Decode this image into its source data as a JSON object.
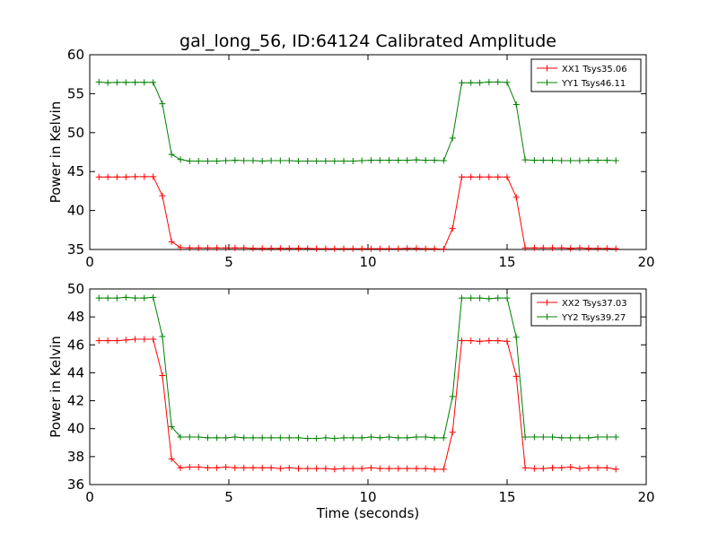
{
  "figure": {
    "title": "gal_long_56, ID:64124 Calibrated Amplitude"
  },
  "chart_data": [
    {
      "type": "line",
      "title": "gal_long_56, ID:64124 Calibrated Amplitude",
      "xlabel": "",
      "ylabel": "Power in Kelvin",
      "xlim": [
        0,
        20
      ],
      "ylim": [
        35,
        60
      ],
      "x_ticks": [
        0,
        5,
        10,
        15,
        20
      ],
      "y_ticks": [
        35,
        40,
        45,
        50,
        55,
        60
      ],
      "grid": false,
      "legend_placement": "top-right",
      "x": [
        0.33,
        0.65,
        0.98,
        1.3,
        1.63,
        1.96,
        2.28,
        2.61,
        2.94,
        3.26,
        3.59,
        3.91,
        4.24,
        4.57,
        4.89,
        5.22,
        5.54,
        5.87,
        6.2,
        6.52,
        6.85,
        7.17,
        7.5,
        7.83,
        8.15,
        8.48,
        8.8,
        9.13,
        9.46,
        9.78,
        10.11,
        10.43,
        10.76,
        11.09,
        11.41,
        11.74,
        12.07,
        12.39,
        12.72,
        13.04,
        13.37,
        13.7,
        14.02,
        14.35,
        14.67,
        15.0,
        15.33,
        15.65,
        15.98,
        16.3,
        16.63,
        16.96,
        17.28,
        17.61,
        17.93,
        18.26,
        18.59,
        18.91
      ],
      "series": [
        {
          "name": "XX1 Tsys35.06",
          "color": "#ff0000",
          "values": [
            44.3,
            44.3,
            44.3,
            44.3,
            44.35,
            44.35,
            44.35,
            41.9,
            36.0,
            35.25,
            35.2,
            35.2,
            35.2,
            35.2,
            35.2,
            35.2,
            35.2,
            35.15,
            35.15,
            35.15,
            35.15,
            35.15,
            35.15,
            35.15,
            35.1,
            35.1,
            35.1,
            35.1,
            35.1,
            35.1,
            35.1,
            35.1,
            35.1,
            35.1,
            35.15,
            35.15,
            35.1,
            35.1,
            35.05,
            37.7,
            44.3,
            44.3,
            44.3,
            44.3,
            44.3,
            44.3,
            41.7,
            35.2,
            35.2,
            35.2,
            35.2,
            35.2,
            35.15,
            35.2,
            35.15,
            35.15,
            35.15,
            35.1
          ]
        },
        {
          "name": "YY1 Tsys46.11",
          "color": "#008000",
          "values": [
            56.5,
            56.4,
            56.45,
            56.45,
            56.45,
            56.45,
            56.45,
            53.7,
            47.2,
            46.55,
            46.35,
            46.35,
            46.35,
            46.35,
            46.4,
            46.45,
            46.4,
            46.4,
            46.35,
            46.4,
            46.4,
            46.4,
            46.35,
            46.35,
            46.35,
            46.35,
            46.35,
            46.35,
            46.35,
            46.4,
            46.45,
            46.45,
            46.45,
            46.45,
            46.45,
            46.5,
            46.45,
            46.45,
            46.4,
            49.3,
            56.4,
            56.4,
            56.4,
            56.5,
            56.5,
            56.45,
            53.6,
            46.5,
            46.45,
            46.45,
            46.45,
            46.4,
            46.4,
            46.4,
            46.45,
            46.45,
            46.45,
            46.4
          ]
        }
      ]
    },
    {
      "type": "line",
      "title": "",
      "xlabel": "Time (seconds)",
      "ylabel": "Power in Kelvin",
      "xlim": [
        0,
        20
      ],
      "ylim": [
        36,
        50
      ],
      "x_ticks": [
        0,
        5,
        10,
        15,
        20
      ],
      "y_ticks": [
        36,
        38,
        40,
        42,
        44,
        46,
        48,
        50
      ],
      "grid": false,
      "legend_placement": "top-right",
      "x": [
        0.33,
        0.65,
        0.98,
        1.3,
        1.63,
        1.96,
        2.28,
        2.61,
        2.94,
        3.26,
        3.59,
        3.91,
        4.24,
        4.57,
        4.89,
        5.22,
        5.54,
        5.87,
        6.2,
        6.52,
        6.85,
        7.17,
        7.5,
        7.83,
        8.15,
        8.48,
        8.8,
        9.13,
        9.46,
        9.78,
        10.11,
        10.43,
        10.76,
        11.09,
        11.41,
        11.74,
        12.07,
        12.39,
        12.72,
        13.04,
        13.37,
        13.7,
        14.02,
        14.35,
        14.67,
        15.0,
        15.33,
        15.65,
        15.98,
        16.3,
        16.63,
        16.96,
        17.28,
        17.61,
        17.93,
        18.26,
        18.59,
        18.91
      ],
      "series": [
        {
          "name": "XX2 Tsys37.03",
          "color": "#ff0000",
          "values": [
            46.3,
            46.3,
            46.3,
            46.35,
            46.4,
            46.4,
            46.4,
            43.8,
            37.85,
            37.2,
            37.25,
            37.25,
            37.2,
            37.2,
            37.25,
            37.2,
            37.2,
            37.2,
            37.2,
            37.2,
            37.15,
            37.2,
            37.15,
            37.15,
            37.15,
            37.15,
            37.1,
            37.15,
            37.15,
            37.15,
            37.2,
            37.15,
            37.15,
            37.15,
            37.15,
            37.15,
            37.15,
            37.1,
            37.1,
            39.75,
            46.3,
            46.3,
            46.25,
            46.3,
            46.3,
            46.25,
            43.75,
            37.2,
            37.15,
            37.15,
            37.2,
            37.2,
            37.25,
            37.15,
            37.2,
            37.2,
            37.2,
            37.1
          ]
        },
        {
          "name": "YY2 Tsys39.27",
          "color": "#008000",
          "values": [
            49.35,
            49.35,
            49.35,
            49.4,
            49.35,
            49.35,
            49.4,
            46.6,
            40.15,
            39.4,
            39.4,
            39.4,
            39.35,
            39.35,
            39.35,
            39.4,
            39.35,
            39.35,
            39.35,
            39.35,
            39.35,
            39.35,
            39.35,
            39.3,
            39.3,
            39.35,
            39.3,
            39.35,
            39.35,
            39.35,
            39.4,
            39.35,
            39.4,
            39.35,
            39.35,
            39.4,
            39.4,
            39.35,
            39.35,
            42.3,
            49.35,
            49.35,
            49.35,
            49.3,
            49.35,
            49.35,
            46.55,
            39.4,
            39.4,
            39.4,
            39.4,
            39.35,
            39.35,
            39.35,
            39.35,
            39.4,
            39.4,
            39.4
          ]
        }
      ]
    }
  ]
}
